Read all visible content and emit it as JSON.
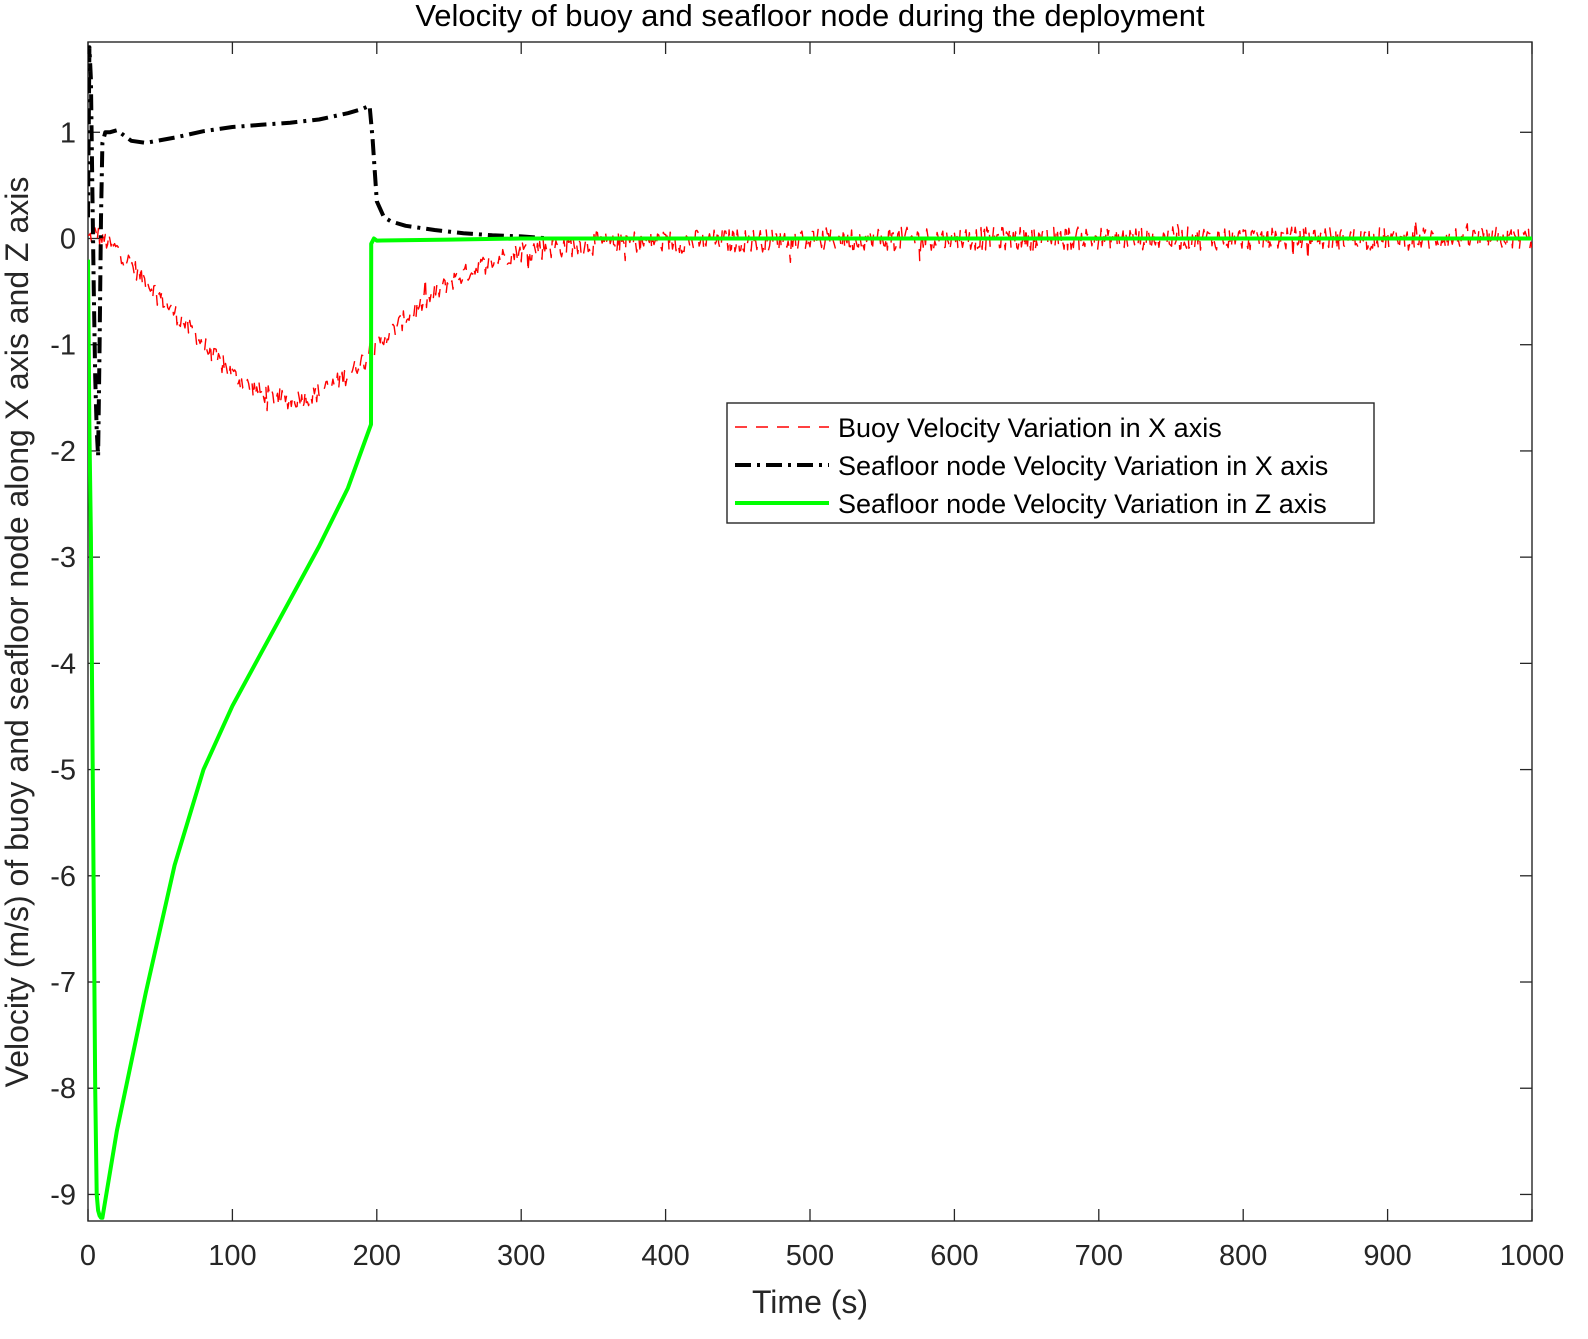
{
  "chart_data": {
    "type": "line",
    "title": "Velocity of buoy and seafloor node during the deployment",
    "xlabel": "Time (s)",
    "ylabel": "Velocity (m/s) of buoy and seafloor node along X axis and Z axis",
    "xlim": [
      0,
      1000
    ],
    "ylim": [
      -9.25,
      1.85
    ],
    "xticks": [
      0,
      100,
      200,
      300,
      400,
      500,
      600,
      700,
      800,
      900,
      1000
    ],
    "yticks": [
      -9,
      -8,
      -7,
      -6,
      -5,
      -4,
      -3,
      -2,
      -1,
      0,
      1
    ],
    "xtick_labels": [
      "0",
      "100",
      "200",
      "300",
      "400",
      "500",
      "600",
      "700",
      "800",
      "900",
      "1000"
    ],
    "ytick_labels": [
      "-9",
      "-8",
      "-7",
      "-6",
      "-5",
      "-4",
      "-3",
      "-2",
      "-1",
      "0",
      "1"
    ],
    "grid": false,
    "legend_position": "center-right",
    "series": [
      {
        "name": "Buoy Velocity Variation in X axis",
        "color": "#ff0000",
        "style": "dashed",
        "noisy": true,
        "x": [
          0,
          5,
          10,
          20,
          30,
          40,
          50,
          60,
          70,
          80,
          90,
          100,
          110,
          120,
          130,
          140,
          150,
          160,
          170,
          180,
          190,
          195,
          200,
          210,
          220,
          230,
          240,
          250,
          260,
          270,
          280,
          290,
          300,
          320,
          340,
          360,
          380,
          400,
          450,
          500,
          600,
          700,
          800,
          900,
          1000
        ],
        "y": [
          0.0,
          0.05,
          0.0,
          -0.1,
          -0.25,
          -0.4,
          -0.55,
          -0.7,
          -0.85,
          -1.0,
          -1.15,
          -1.28,
          -1.38,
          -1.45,
          -1.5,
          -1.52,
          -1.5,
          -1.45,
          -1.38,
          -1.28,
          -1.15,
          -1.1,
          -1.0,
          -0.88,
          -0.75,
          -0.63,
          -0.52,
          -0.42,
          -0.34,
          -0.27,
          -0.21,
          -0.16,
          -0.12,
          -0.08,
          -0.06,
          -0.04,
          -0.03,
          -0.03,
          -0.02,
          -0.01,
          0.0,
          0.0,
          0.0,
          0.0,
          0.0
        ]
      },
      {
        "name": "Seafloor node Velocity Variation in X axis",
        "color": "#000000",
        "style": "dashdot",
        "noisy": false,
        "x": [
          0,
          1,
          2,
          3,
          4,
          5,
          6,
          7,
          8,
          9,
          10,
          12,
          15,
          20,
          30,
          40,
          60,
          80,
          100,
          120,
          140,
          160,
          180,
          190,
          195,
          197,
          200,
          205,
          210,
          220,
          240,
          260,
          280,
          300,
          320,
          1000
        ],
        "y": [
          0.2,
          1.8,
          1.5,
          0.5,
          -0.5,
          -1.3,
          -1.8,
          -2.05,
          -1.0,
          0.2,
          0.9,
          1.0,
          1.0,
          1.02,
          0.92,
          0.9,
          0.95,
          1.01,
          1.05,
          1.07,
          1.09,
          1.12,
          1.18,
          1.22,
          1.25,
          0.95,
          0.35,
          0.2,
          0.16,
          0.12,
          0.08,
          0.05,
          0.03,
          0.02,
          0.0,
          0.0
        ]
      },
      {
        "name": "Seafloor node Velocity Variation in Z axis",
        "color": "#00ff00",
        "style": "solid",
        "noisy": false,
        "x": [
          0,
          1,
          2,
          3,
          4,
          5,
          6,
          7,
          8,
          9,
          10,
          20,
          40,
          60,
          80,
          100,
          120,
          140,
          160,
          180,
          196,
          196.1,
          198,
          200,
          250,
          300,
          1000
        ],
        "y": [
          -0.2,
          -1.8,
          -2.8,
          -4.5,
          -6.3,
          -8.0,
          -9.0,
          -9.15,
          -9.2,
          -9.22,
          -9.22,
          -8.4,
          -7.1,
          -5.9,
          -5.0,
          -4.4,
          -3.9,
          -3.4,
          -2.9,
          -2.35,
          -1.75,
          -0.05,
          0.0,
          -0.02,
          -0.01,
          0.0,
          0.0
        ]
      }
    ]
  }
}
